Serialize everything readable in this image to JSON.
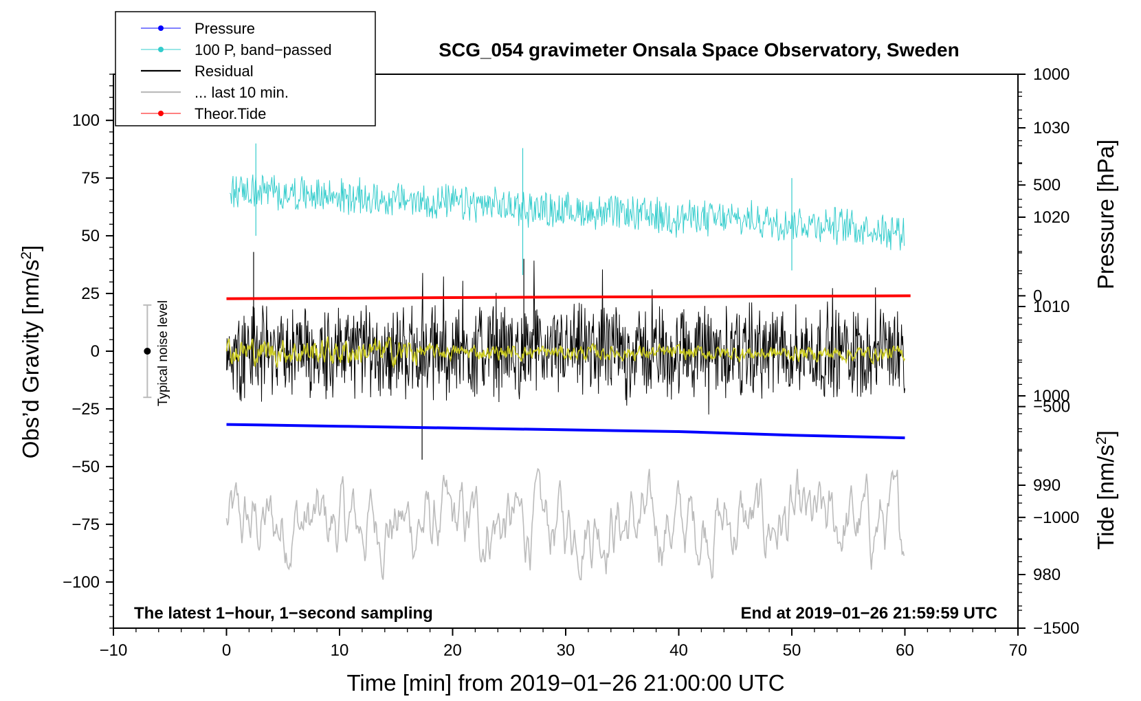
{
  "chart_data": {
    "type": "line",
    "title": "SCG_054 gravimeter Onsala Space Observatory, Sweden",
    "xlabel": "Time [min] from 2019−01−26 21:00:00 UTC",
    "ylabel_left_main": "Obs’d Gravity [nm/s",
    "ylabel_left_sup": "2",
    "ylabel_left_end": "]",
    "ylabel_right_pressure": "Pressure [hPa]",
    "ylabel_right_tide_main": "Tide [nm/s",
    "ylabel_right_tide_sup": "2",
    "ylabel_right_tide_end": "]",
    "xlim": [
      -10,
      70
    ],
    "ylim_gravity": [
      -120,
      120
    ],
    "ylim_pressure": [
      974,
      1036
    ],
    "ylim_tide": [
      -1500,
      1000
    ],
    "x_ticks": [
      "−10",
      "0",
      "10",
      "20",
      "30",
      "40",
      "50",
      "60",
      "70"
    ],
    "x_tick_values": [
      -10,
      0,
      10,
      20,
      30,
      40,
      50,
      60,
      70
    ],
    "gravity_ticks": [
      "100",
      "75",
      "50",
      "25",
      "0",
      "−25",
      "−50",
      "−75",
      "−100"
    ],
    "gravity_tick_values": [
      100,
      75,
      50,
      25,
      0,
      -25,
      -50,
      -75,
      -100
    ],
    "pressure_ticks": [
      "1030",
      "1020",
      "1010",
      "1000",
      "990",
      "980"
    ],
    "pressure_tick_values": [
      1030,
      1020,
      1010,
      1000,
      990,
      980
    ],
    "tide_ticks": [
      "1000",
      "500",
      "0",
      "−500",
      "−1000",
      "−1500"
    ],
    "tide_tick_values": [
      1000,
      500,
      0,
      -500,
      -1000,
      -1500
    ],
    "annotations": {
      "left": "The latest 1−hour, 1−second sampling",
      "right": "End at 2019−01−26 21:59:59 UTC"
    },
    "noise_level": {
      "label": "Typical noise level",
      "x": -7,
      "center": 0,
      "low": -20,
      "high": 20
    },
    "legend": [
      {
        "name": "Pressure",
        "color": "#0000ff",
        "marker": true
      },
      {
        "name": "100 P, band−passed",
        "color": "#33cccc",
        "marker": true
      },
      {
        "name": "Residual",
        "color": "#000000",
        "marker": false
      },
      {
        "name": "... last 10 min.",
        "color": "#bbbbbb",
        "marker": false
      },
      {
        "name": "Theor.Tide",
        "color": "#ff0000",
        "marker": true
      }
    ],
    "series": [
      {
        "name": "Pressure",
        "axis": "pressure",
        "color": "#0000ff",
        "x": [
          0,
          10,
          20,
          30,
          40,
          50,
          60
        ],
        "y": [
          996.8,
          996.6,
          996.4,
          996.2,
          996.0,
          995.6,
          995.3
        ]
      },
      {
        "name": "100 P, band−passed",
        "axis": "gravity",
        "color": "#33cccc",
        "x": [
          0,
          10,
          20,
          30,
          40,
          50,
          60
        ],
        "y": [
          70,
          67,
          64,
          61,
          58,
          56,
          52
        ],
        "spikes": [
          {
            "x": 2.6,
            "y": 90,
            "yb": 50
          },
          {
            "x": 26.2,
            "y": 88,
            "yb": 33
          },
          {
            "x": 50.0,
            "y": 75,
            "yb": 35
          }
        ]
      },
      {
        "name": "Residual",
        "axis": "gravity",
        "color": "#000000",
        "x": [
          0,
          60
        ],
        "y": [
          0,
          0
        ],
        "peaks": [
          {
            "x": 2.4,
            "y": 43
          },
          {
            "x": 17.3,
            "y": -47
          },
          {
            "x": 26.3,
            "y": 40
          }
        ]
      },
      {
        "name": "... last 10 min.",
        "axis": "gravity",
        "color": "#bbbbbb",
        "x": [
          0,
          60
        ],
        "y": [
          -75,
          -75
        ]
      },
      {
        "name": "Theor.Tide",
        "axis": "tide",
        "color": "#ff0000",
        "x": [
          0,
          10,
          20,
          30,
          40,
          50,
          60.5
        ],
        "y": [
          -13,
          -11,
          -8,
          -6,
          -4,
          -2,
          0
        ]
      }
    ]
  }
}
